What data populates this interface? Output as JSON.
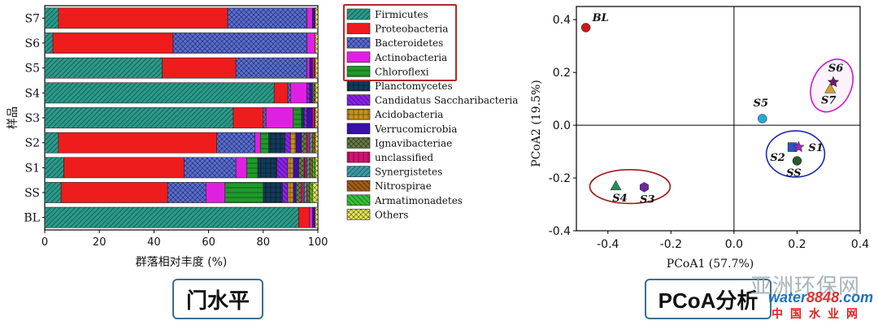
{
  "colors": {
    "Firmicutes": "#2a9a8a",
    "Proteobacteria": "#ee1c1c",
    "Bacteroidetes": "#5a6ed8",
    "Actinobacteria": "#e020e0",
    "Chloroflexi": "#1e9a2a",
    "Planctomycetes": "#143a5a",
    "Candidatus Saccharibacteria": "#8a20e8",
    "Acidobacteria": "#c8901c",
    "Verrucomicrobia": "#3a10a8",
    "Ignavibacteriae": "#6a7a46",
    "unclassified": "#d01470",
    "Synergistetes": "#3a9aa6",
    "Nitrospirae": "#a05a18",
    "Armatimonadetes": "#36c036",
    "Others": "#e8e458",
    "legend_highlight": "#b02a2a",
    "ellipse_red": "#a01818",
    "ellipse_blue": "#1a2ab0",
    "ellipse_magenta": "#d018d0"
  },
  "chart_data": [
    {
      "type": "bar",
      "orientation": "horizontal",
      "stacked": true,
      "ylabel": "样品",
      "xlabel": "群落相对丰度 (%)",
      "xlim": [
        0,
        100
      ],
      "xticks": [
        0,
        20,
        40,
        60,
        80,
        100
      ],
      "categories": [
        "S7",
        "S6",
        "S5",
        "S4",
        "S3",
        "S2",
        "S1",
        "SS",
        "BL"
      ],
      "series": [
        {
          "name": "Firmicutes",
          "values": [
            5,
            3,
            43,
            84,
            69,
            5,
            7,
            6,
            93
          ]
        },
        {
          "name": "Proteobacteria",
          "values": [
            62,
            44,
            27,
            5,
            11,
            58,
            44,
            39,
            4
          ]
        },
        {
          "name": "Bacteroidetes",
          "values": [
            29,
            49,
            26,
            1,
            1,
            14,
            19,
            14,
            0
          ]
        },
        {
          "name": "Actinobacteria",
          "values": [
            2,
            3,
            1,
            6,
            10,
            2,
            4,
            7,
            1
          ]
        },
        {
          "name": "Chloroflexi",
          "values": [
            0,
            0,
            0,
            0,
            3,
            3,
            4,
            14,
            0
          ]
        },
        {
          "name": "Planctomycetes",
          "values": [
            0,
            0,
            0,
            0,
            1,
            6,
            7,
            7,
            0
          ]
        },
        {
          "name": "Candidatus Saccharibacteria",
          "values": [
            0,
            0,
            0,
            1,
            1,
            2,
            4,
            2,
            0
          ]
        },
        {
          "name": "Acidobacteria",
          "values": [
            0,
            0,
            0,
            0,
            0,
            2,
            2,
            2,
            0
          ]
        },
        {
          "name": "Verrucomicrobia",
          "values": [
            1,
            0,
            1,
            1,
            2,
            2,
            2,
            1,
            1
          ]
        },
        {
          "name": "Ignavibacteriae",
          "values": [
            0,
            0,
            0,
            1,
            0,
            2,
            2,
            2,
            0
          ]
        },
        {
          "name": "unclassified",
          "values": [
            0,
            0,
            1,
            0,
            1,
            1,
            1,
            1,
            0
          ]
        },
        {
          "name": "Synergistetes",
          "values": [
            0,
            0,
            0,
            0,
            0,
            1,
            1,
            1,
            0
          ]
        },
        {
          "name": "Nitrospirae",
          "values": [
            0,
            0,
            0,
            0,
            0,
            1,
            1,
            1,
            0
          ]
        },
        {
          "name": "Armatimonadetes",
          "values": [
            0,
            0,
            0,
            0,
            0,
            0,
            1,
            1,
            0
          ]
        },
        {
          "name": "Others",
          "values": [
            1,
            1,
            1,
            1,
            1,
            1,
            1,
            2,
            1
          ]
        }
      ],
      "legend_title_highlighted": [
        "Firmicutes",
        "Proteobacteria",
        "Bacteroidetes",
        "Actinobacteria",
        "Chloroflexi"
      ]
    },
    {
      "type": "scatter",
      "xlabel": "PCoA1 (57.7%)",
      "ylabel": "PCoA2 (19.5%)",
      "xlim": [
        -0.5,
        0.4
      ],
      "ylim": [
        -0.4,
        0.45
      ],
      "xticks": [
        -0.4,
        -0.2,
        0.0,
        0.2,
        0.4
      ],
      "yticks": [
        -0.4,
        -0.2,
        0.0,
        0.2,
        0.4
      ],
      "xtick_labels": [
        "-0.4",
        "-0.2",
        "0.0",
        "0.2",
        "0.4"
      ],
      "ytick_labels": [
        "-0.4",
        "-0.2",
        "0.0",
        "0.2",
        "0.4"
      ],
      "points": [
        {
          "label": "BL",
          "x": -0.47,
          "y": 0.37,
          "marker": "circle",
          "color": "#cc1818",
          "italic_label": true
        },
        {
          "label": "S5",
          "x": 0.09,
          "y": 0.025,
          "marker": "circle",
          "color": "#2aa6d8"
        },
        {
          "label": "S2",
          "x": 0.185,
          "y": -0.083,
          "marker": "square",
          "color": "#2a52c8"
        },
        {
          "label": "S1",
          "x": 0.205,
          "y": -0.083,
          "marker": "star",
          "color": "#9a28c0"
        },
        {
          "label": "SS",
          "x": 0.2,
          "y": -0.135,
          "marker": "circle",
          "color": "#2a5a2a"
        },
        {
          "label": "S6",
          "x": 0.315,
          "y": 0.163,
          "marker": "star",
          "color": "#6a1a6a"
        },
        {
          "label": "S7",
          "x": 0.305,
          "y": 0.138,
          "marker": "triangle",
          "color": "#d4a030"
        },
        {
          "label": "S4",
          "x": -0.375,
          "y": -0.23,
          "marker": "triangle",
          "color": "#2a8a5a"
        },
        {
          "label": "S3",
          "x": -0.285,
          "y": -0.235,
          "marker": "hexagon",
          "color": "#6a2a9a"
        }
      ],
      "groups": [
        {
          "members": [
            "S4",
            "S3"
          ],
          "color": "ellipse_red"
        },
        {
          "members": [
            "S2",
            "S1",
            "SS"
          ],
          "color": "ellipse_blue"
        },
        {
          "members": [
            "S6",
            "S7"
          ],
          "color": "ellipse_magenta"
        }
      ]
    }
  ],
  "captions": {
    "left": "门水平",
    "right": "PCoA分析"
  },
  "watermark": {
    "top": "亚洲环保网",
    "brand_a": "water",
    "brand_b": "8848",
    "brand_c": ".com",
    "bottom": "中国水业网"
  }
}
